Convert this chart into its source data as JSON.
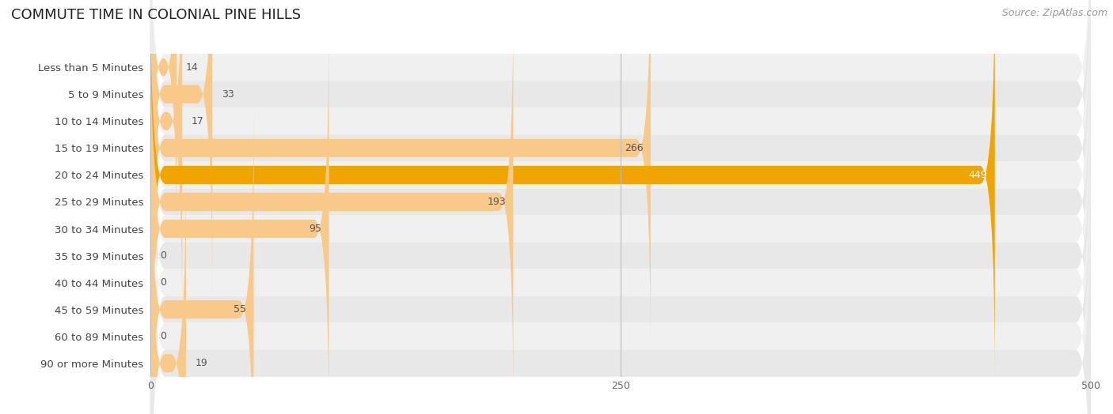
{
  "title": "COMMUTE TIME IN COLONIAL PINE HILLS",
  "source": "Source: ZipAtlas.com",
  "categories": [
    "Less than 5 Minutes",
    "5 to 9 Minutes",
    "10 to 14 Minutes",
    "15 to 19 Minutes",
    "20 to 24 Minutes",
    "25 to 29 Minutes",
    "30 to 34 Minutes",
    "35 to 39 Minutes",
    "40 to 44 Minutes",
    "45 to 59 Minutes",
    "60 to 89 Minutes",
    "90 or more Minutes"
  ],
  "values": [
    14,
    33,
    17,
    266,
    449,
    193,
    95,
    0,
    0,
    55,
    0,
    19
  ],
  "xlim": [
    0,
    500
  ],
  "xticks": [
    0,
    250,
    500
  ],
  "bar_color_normal": "#f9c98a",
  "bar_color_max": "#f0a500",
  "row_bg_even": "#f0f0f0",
  "row_bg_odd": "#e8e8e8",
  "title_color": "#222222",
  "label_color": "#444444",
  "value_color_inside": "#ffffff",
  "value_color_outside": "#555555",
  "source_color": "#999999",
  "title_fontsize": 13,
  "label_fontsize": 9.5,
  "value_fontsize": 9,
  "source_fontsize": 9,
  "tick_fontsize": 9,
  "figsize": [
    14.06,
    5.24
  ],
  "dpi": 100
}
